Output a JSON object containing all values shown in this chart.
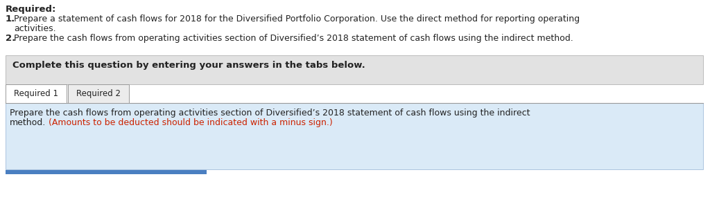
{
  "required_label": "Required:",
  "line1_bold": "1.",
  "line1_normal": " Prepare a statement of cash flows for 2018 for the Diversified Portfolio Corporation. Use the direct method for reporting operating",
  "line1_cont": "activities.",
  "line2_bold": "2.",
  "line2_normal": " Prepare the cash flows from operating activities section of Diversified’s 2018 statement of cash flows using the indirect method.",
  "complete_text": "Complete this question by entering your answers in the tabs below.",
  "tab1": "Required 1",
  "tab2": "Required 2",
  "body_line1": "Prepare the cash flows from operating activities section of Diversified’s 2018 statement of cash flows using the indirect",
  "body_line2_black": "method.",
  "body_line2_red": " (Amounts to be deducted should be indicated with a minus sign.)",
  "bg_color": "#ffffff",
  "gray_box_color": "#e2e2e2",
  "light_blue_box_color": "#daeaf7",
  "tab_border_color": "#999999",
  "tab1_color": "#ffffff",
  "tab2_color": "#ececec",
  "accent_blue_color": "#4a7fc1",
  "text_black": "#222222",
  "text_red": "#cc2200",
  "fs": 9.0,
  "fs_bold": 9.5
}
